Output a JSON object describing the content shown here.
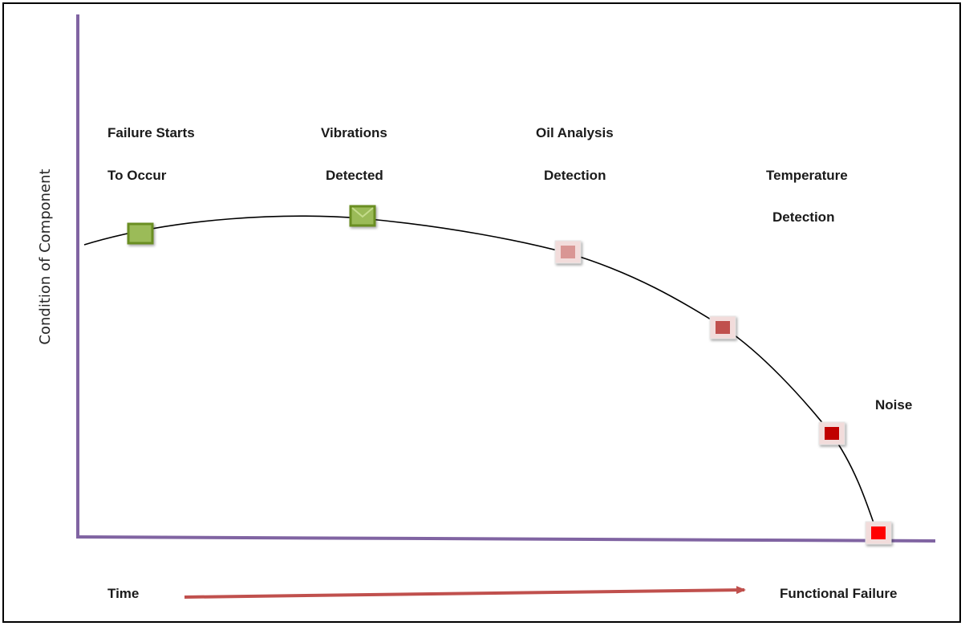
{
  "y_axis": {
    "label": "Condition of Component",
    "color": "#8064a2"
  },
  "x_axis": {
    "start_label": "Time",
    "end_label": "Functional Failure",
    "arrow_color": "#c0504d"
  },
  "curve_color": "#000000",
  "stages": [
    {
      "id": "failure-starts",
      "line1": "Failure Starts",
      "line2": "To Occur",
      "fill": "#9bbb59",
      "border": "#6b8e23"
    },
    {
      "id": "vibrations",
      "line1": "Vibrations",
      "line2": "Detected",
      "fill": "#9bbb59",
      "border": "#6b8e23"
    },
    {
      "id": "oil-analysis",
      "line1": "Oil Analysis",
      "line2": "Detection",
      "fill": "#d99694",
      "border": "#f2dcdb"
    },
    {
      "id": "temperature",
      "line1": "Temperature",
      "line2": "Detection",
      "fill": "#c0504d",
      "border": "#f2dcdb"
    },
    {
      "id": "noise",
      "line1": "Noise",
      "line2": "",
      "fill": "#c00000",
      "border": "#f2dcdb"
    },
    {
      "id": "functional-failure",
      "line1": "",
      "line2": "",
      "fill": "#ff0000",
      "border": "#f2dcdb"
    }
  ]
}
